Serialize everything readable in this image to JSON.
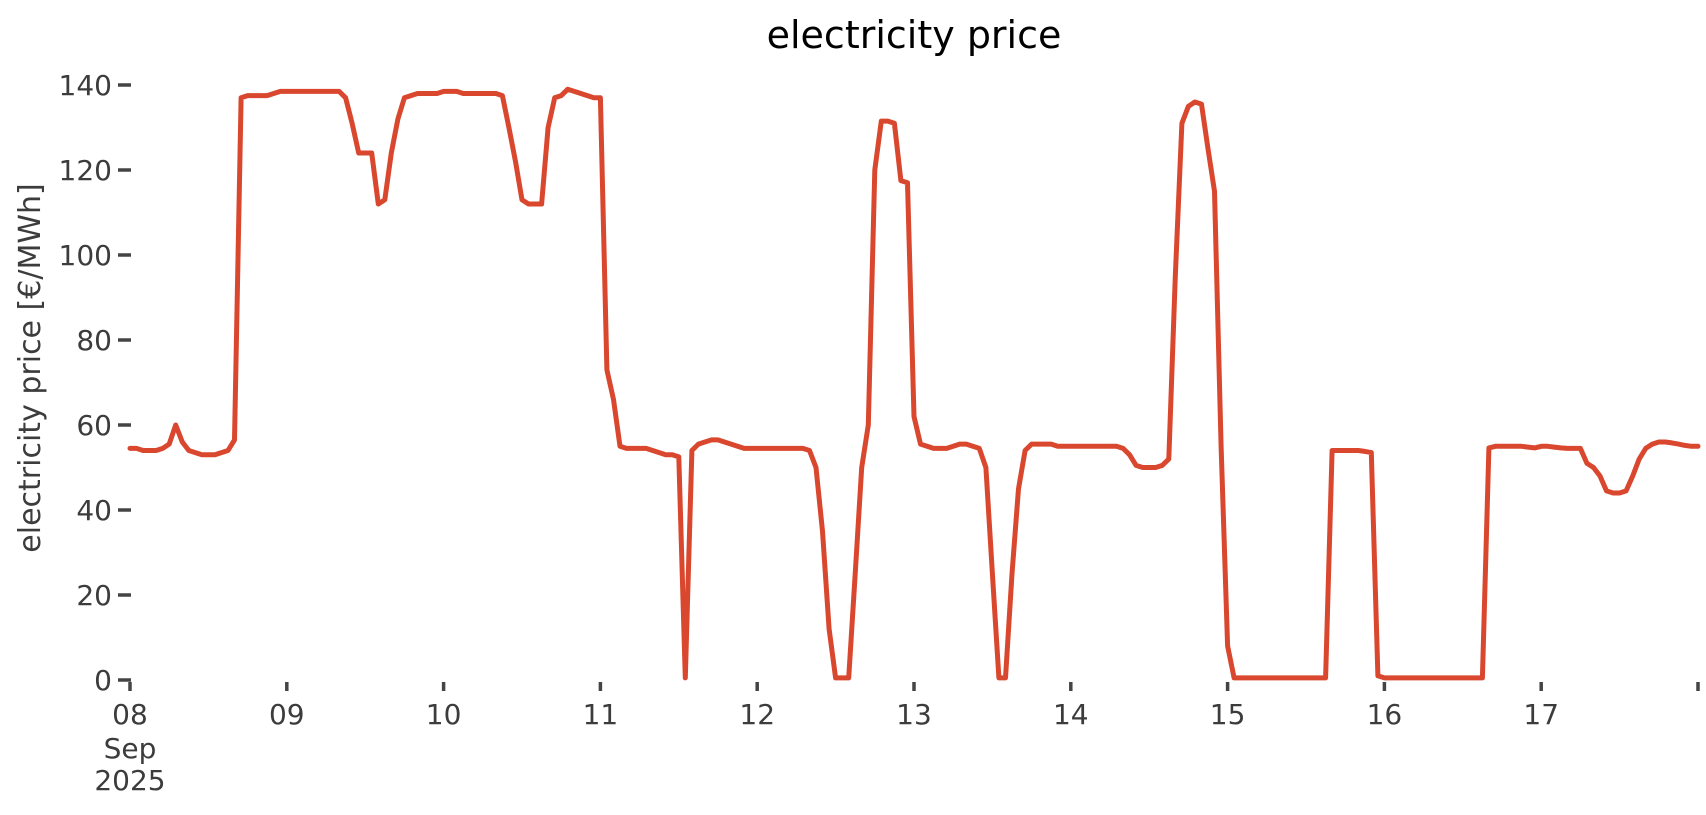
{
  "title": "electricity price",
  "line_color": "#d9472e",
  "tick_color": "#444444",
  "label_color": "#3c3c3c",
  "title_color": "#000000",
  "y_axis": {
    "label": "electricity price [€/MWh]",
    "ticks": [
      0,
      20,
      40,
      60,
      80,
      100,
      120,
      140
    ]
  },
  "x_axis": {
    "tick_labels": [
      "08",
      "09",
      "10",
      "11",
      "12",
      "13",
      "14",
      "15",
      "16",
      "17"
    ],
    "first_tick_month": "Sep",
    "first_tick_year": "2025",
    "unlabeled_end_tick": true
  },
  "chart_data": {
    "type": "line",
    "title": "electricity price",
    "xlabel": "",
    "ylabel": "electricity price [€/MWh]",
    "ylim": [
      0,
      145
    ],
    "x_range": [
      "2025-09-08T00:00",
      "2025-09-18T00:00"
    ],
    "grid": false,
    "legend": false,
    "series": [
      {
        "name": "electricity price",
        "unit": "€/MWh",
        "start": "2025-09-08T00:00",
        "step_hours": 1,
        "values": [
          54.5,
          54.5,
          54,
          54,
          54,
          54.5,
          55.5,
          60,
          56,
          54,
          53.5,
          53,
          53,
          53,
          53.5,
          54,
          56.5,
          137,
          137.5,
          137.5,
          137.5,
          137.5,
          138,
          138.5,
          138.5,
          138.5,
          138.5,
          138.5,
          138.5,
          138.5,
          138.5,
          138.5,
          138.5,
          137,
          131,
          124,
          124,
          124,
          112,
          113,
          124,
          132,
          137,
          137.5,
          138,
          138,
          138,
          138,
          138.5,
          138.5,
          138.5,
          138,
          138,
          138,
          138,
          138,
          138,
          137.5,
          130,
          122,
          113,
          112,
          112,
          112,
          130,
          137,
          137.5,
          139,
          138.5,
          138,
          137.5,
          137,
          137,
          73,
          66,
          55,
          54.5,
          54.5,
          54.5,
          54.5,
          54,
          53.5,
          53,
          53,
          52.5,
          0.5,
          54,
          55.5,
          56,
          56.5,
          56.5,
          56,
          55.5,
          55,
          54.5,
          54.5,
          54.5,
          54.5,
          54.5,
          54.5,
          54.5,
          54.5,
          54.5,
          54.5,
          54,
          50,
          35,
          12,
          0.5,
          0.5,
          0.5,
          25,
          50,
          60,
          120,
          131.5,
          131.5,
          131,
          117.5,
          117,
          62,
          55.5,
          55,
          54.5,
          54.5,
          54.5,
          55,
          55.5,
          55.5,
          55,
          54.5,
          50,
          25,
          0.5,
          0.5,
          25,
          45,
          54,
          55.5,
          55.5,
          55.5,
          55.5,
          55,
          55,
          55,
          55,
          55,
          55,
          55,
          55,
          55,
          55,
          54.5,
          53,
          50.5,
          50,
          50,
          50,
          50.5,
          52,
          95,
          131,
          135,
          136,
          135.5,
          125,
          115,
          55,
          8,
          0.5,
          0.5,
          0.5,
          0.5,
          0.5,
          0.5,
          0.5,
          0.5,
          0.5,
          0.5,
          0.5,
          0.5,
          0.5,
          0.5,
          0.5,
          54,
          54,
          54,
          54,
          54,
          53.8,
          53.5,
          1,
          0.5,
          0.5,
          0.5,
          0.5,
          0.5,
          0.5,
          0.5,
          0.5,
          0.5,
          0.5,
          0.5,
          0.5,
          0.5,
          0.5,
          0.5,
          0.5,
          54.6,
          55,
          55,
          55,
          55,
          55,
          54.8,
          54.6,
          55,
          55,
          54.8,
          54.6,
          54.5,
          54.5,
          54.5,
          51,
          50,
          48,
          44.5,
          44,
          44,
          44.5,
          48,
          52,
          54.5,
          55.5,
          56,
          56,
          55.8,
          55.5,
          55.2,
          55,
          55
        ]
      }
    ]
  }
}
